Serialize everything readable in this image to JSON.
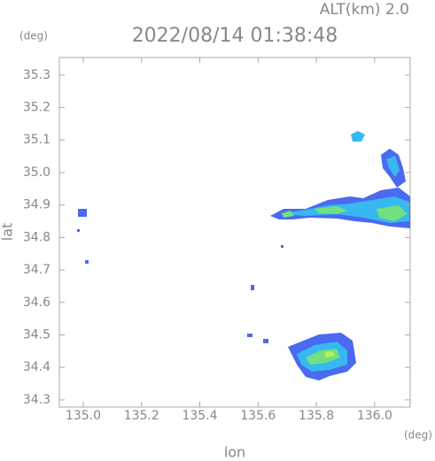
{
  "chart_data": {
    "type": "radar-map",
    "title": "2022/08/14 01:38:48",
    "subtitle": "ALT(km) 2.0",
    "x_label": "lon",
    "x_unit": "(deg)",
    "y_label": "lat",
    "y_unit": "(deg)",
    "xlim": [
      134.918,
      136.122
    ],
    "ylim": [
      34.278,
      35.354
    ],
    "xticks": [
      {
        "value": 135,
        "label": "135.0"
      },
      135.2,
      135.4,
      135.6,
      135.8,
      {
        "value": 136,
        "label": "136.0"
      }
    ],
    "yticks": [
      34.3,
      34.4,
      34.5,
      34.6,
      34.7,
      34.8,
      34.9,
      {
        "value": 35,
        "label": "35.0"
      },
      35.1,
      35.2,
      35.3
    ]
  }
}
